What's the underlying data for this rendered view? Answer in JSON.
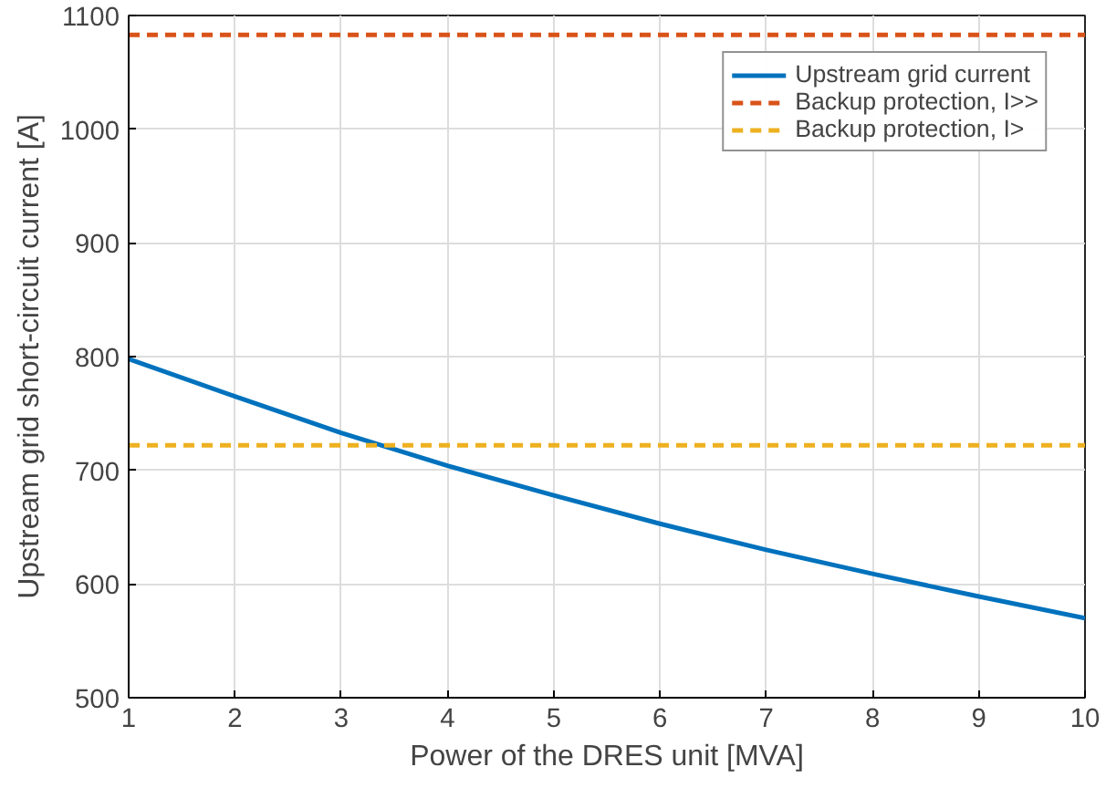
{
  "chart_data": {
    "type": "line",
    "xlabel": "Power of the DRES unit [MVA]",
    "ylabel": "Upstream grid short-circuit current [A]",
    "x": [
      1,
      2,
      3,
      4,
      5,
      6,
      7,
      8,
      9,
      10
    ],
    "series": [
      {
        "name": "Upstream grid current",
        "color": "#0072bd",
        "line_style": "solid",
        "values": [
          798,
          765,
          733,
          704,
          678,
          653,
          630,
          609,
          589,
          570
        ]
      },
      {
        "name": "Backup protection, I>>",
        "color": "#d95319",
        "line_style": "dashed",
        "values": [
          1083,
          1083,
          1083,
          1083,
          1083,
          1083,
          1083,
          1083,
          1083,
          1083
        ]
      },
      {
        "name": "Backup protection, I>",
        "color": "#edb120",
        "line_style": "dashed",
        "values": [
          722,
          722,
          722,
          722,
          722,
          722,
          722,
          722,
          722,
          722
        ]
      }
    ],
    "xlim": [
      1,
      10
    ],
    "ylim": [
      500,
      1100
    ],
    "xticks": [
      1,
      2,
      3,
      4,
      5,
      6,
      7,
      8,
      9,
      10
    ],
    "yticks": [
      500,
      600,
      700,
      800,
      900,
      1000,
      1100
    ],
    "grid": true,
    "legend": "top right",
    "marker": "none"
  }
}
